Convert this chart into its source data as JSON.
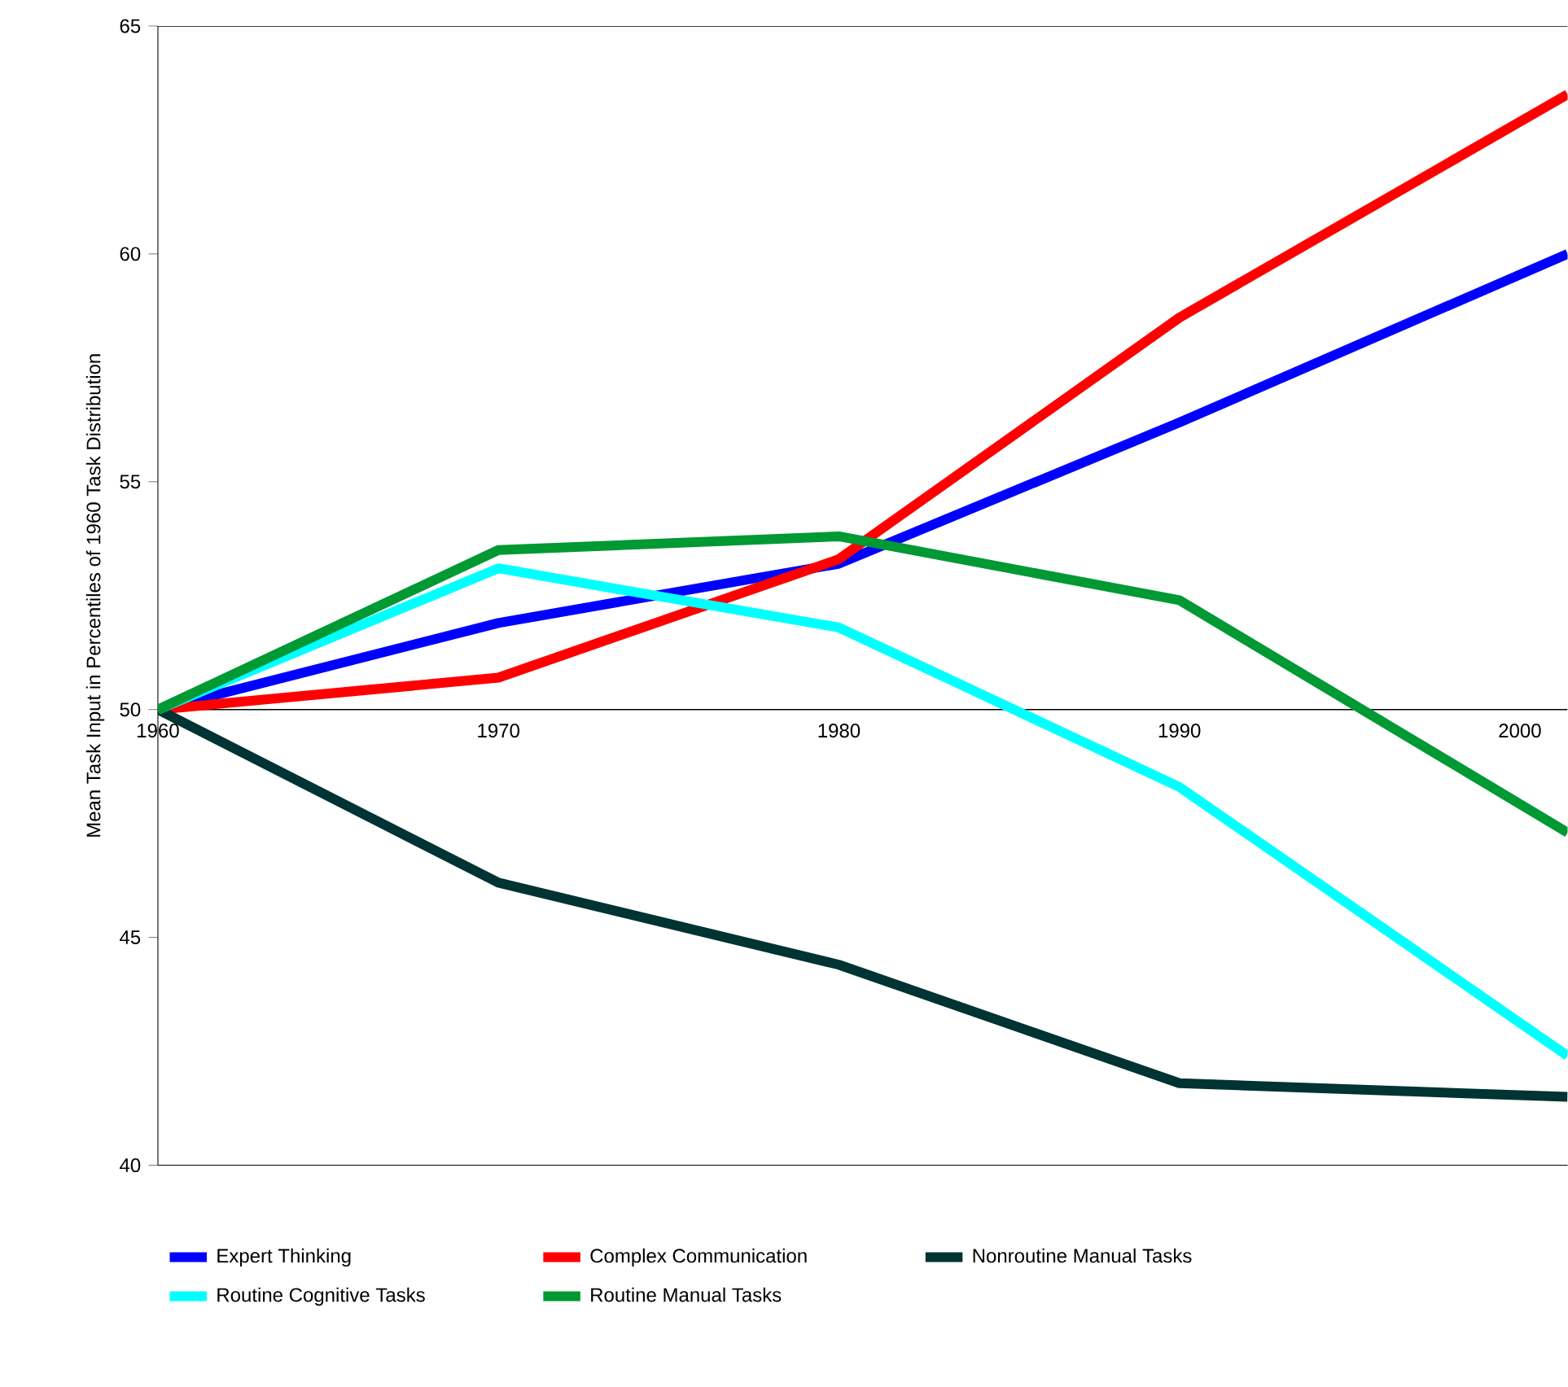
{
  "chart_data": {
    "type": "line",
    "ylabel": "Mean Task Input in Percentiles of 1960 Task Distribution",
    "xlim": [
      1960,
      2001.4
    ],
    "ylim": [
      40,
      65
    ],
    "xticks": [
      1960,
      1970,
      1980,
      1990,
      2000
    ],
    "yticks": [
      40,
      45,
      50,
      55,
      60,
      65
    ],
    "x": [
      1960,
      1970,
      1980,
      1990,
      2001.4
    ],
    "series": [
      {
        "name": "Expert Thinking",
        "color": "#0000ff",
        "values": [
          50,
          51.9,
          53.2,
          56.3,
          60.0
        ]
      },
      {
        "name": "Complex Communication",
        "color": "#ff0000",
        "values": [
          50,
          50.7,
          53.3,
          58.6,
          63.5
        ]
      },
      {
        "name": "Nonroutine Manual Tasks",
        "color": "#003333",
        "values": [
          50,
          46.2,
          44.4,
          41.8,
          41.5
        ]
      },
      {
        "name": "Routine Cognitive Tasks",
        "color": "#00ffff",
        "values": [
          50,
          53.1,
          51.8,
          48.3,
          42.4
        ]
      },
      {
        "name": "Routine Manual Tasks",
        "color": "#009933",
        "values": [
          50,
          53.5,
          53.8,
          52.4,
          47.3
        ]
      }
    ],
    "legend": "bottom",
    "grid": false,
    "marker": "none",
    "line_style": "solid"
  }
}
